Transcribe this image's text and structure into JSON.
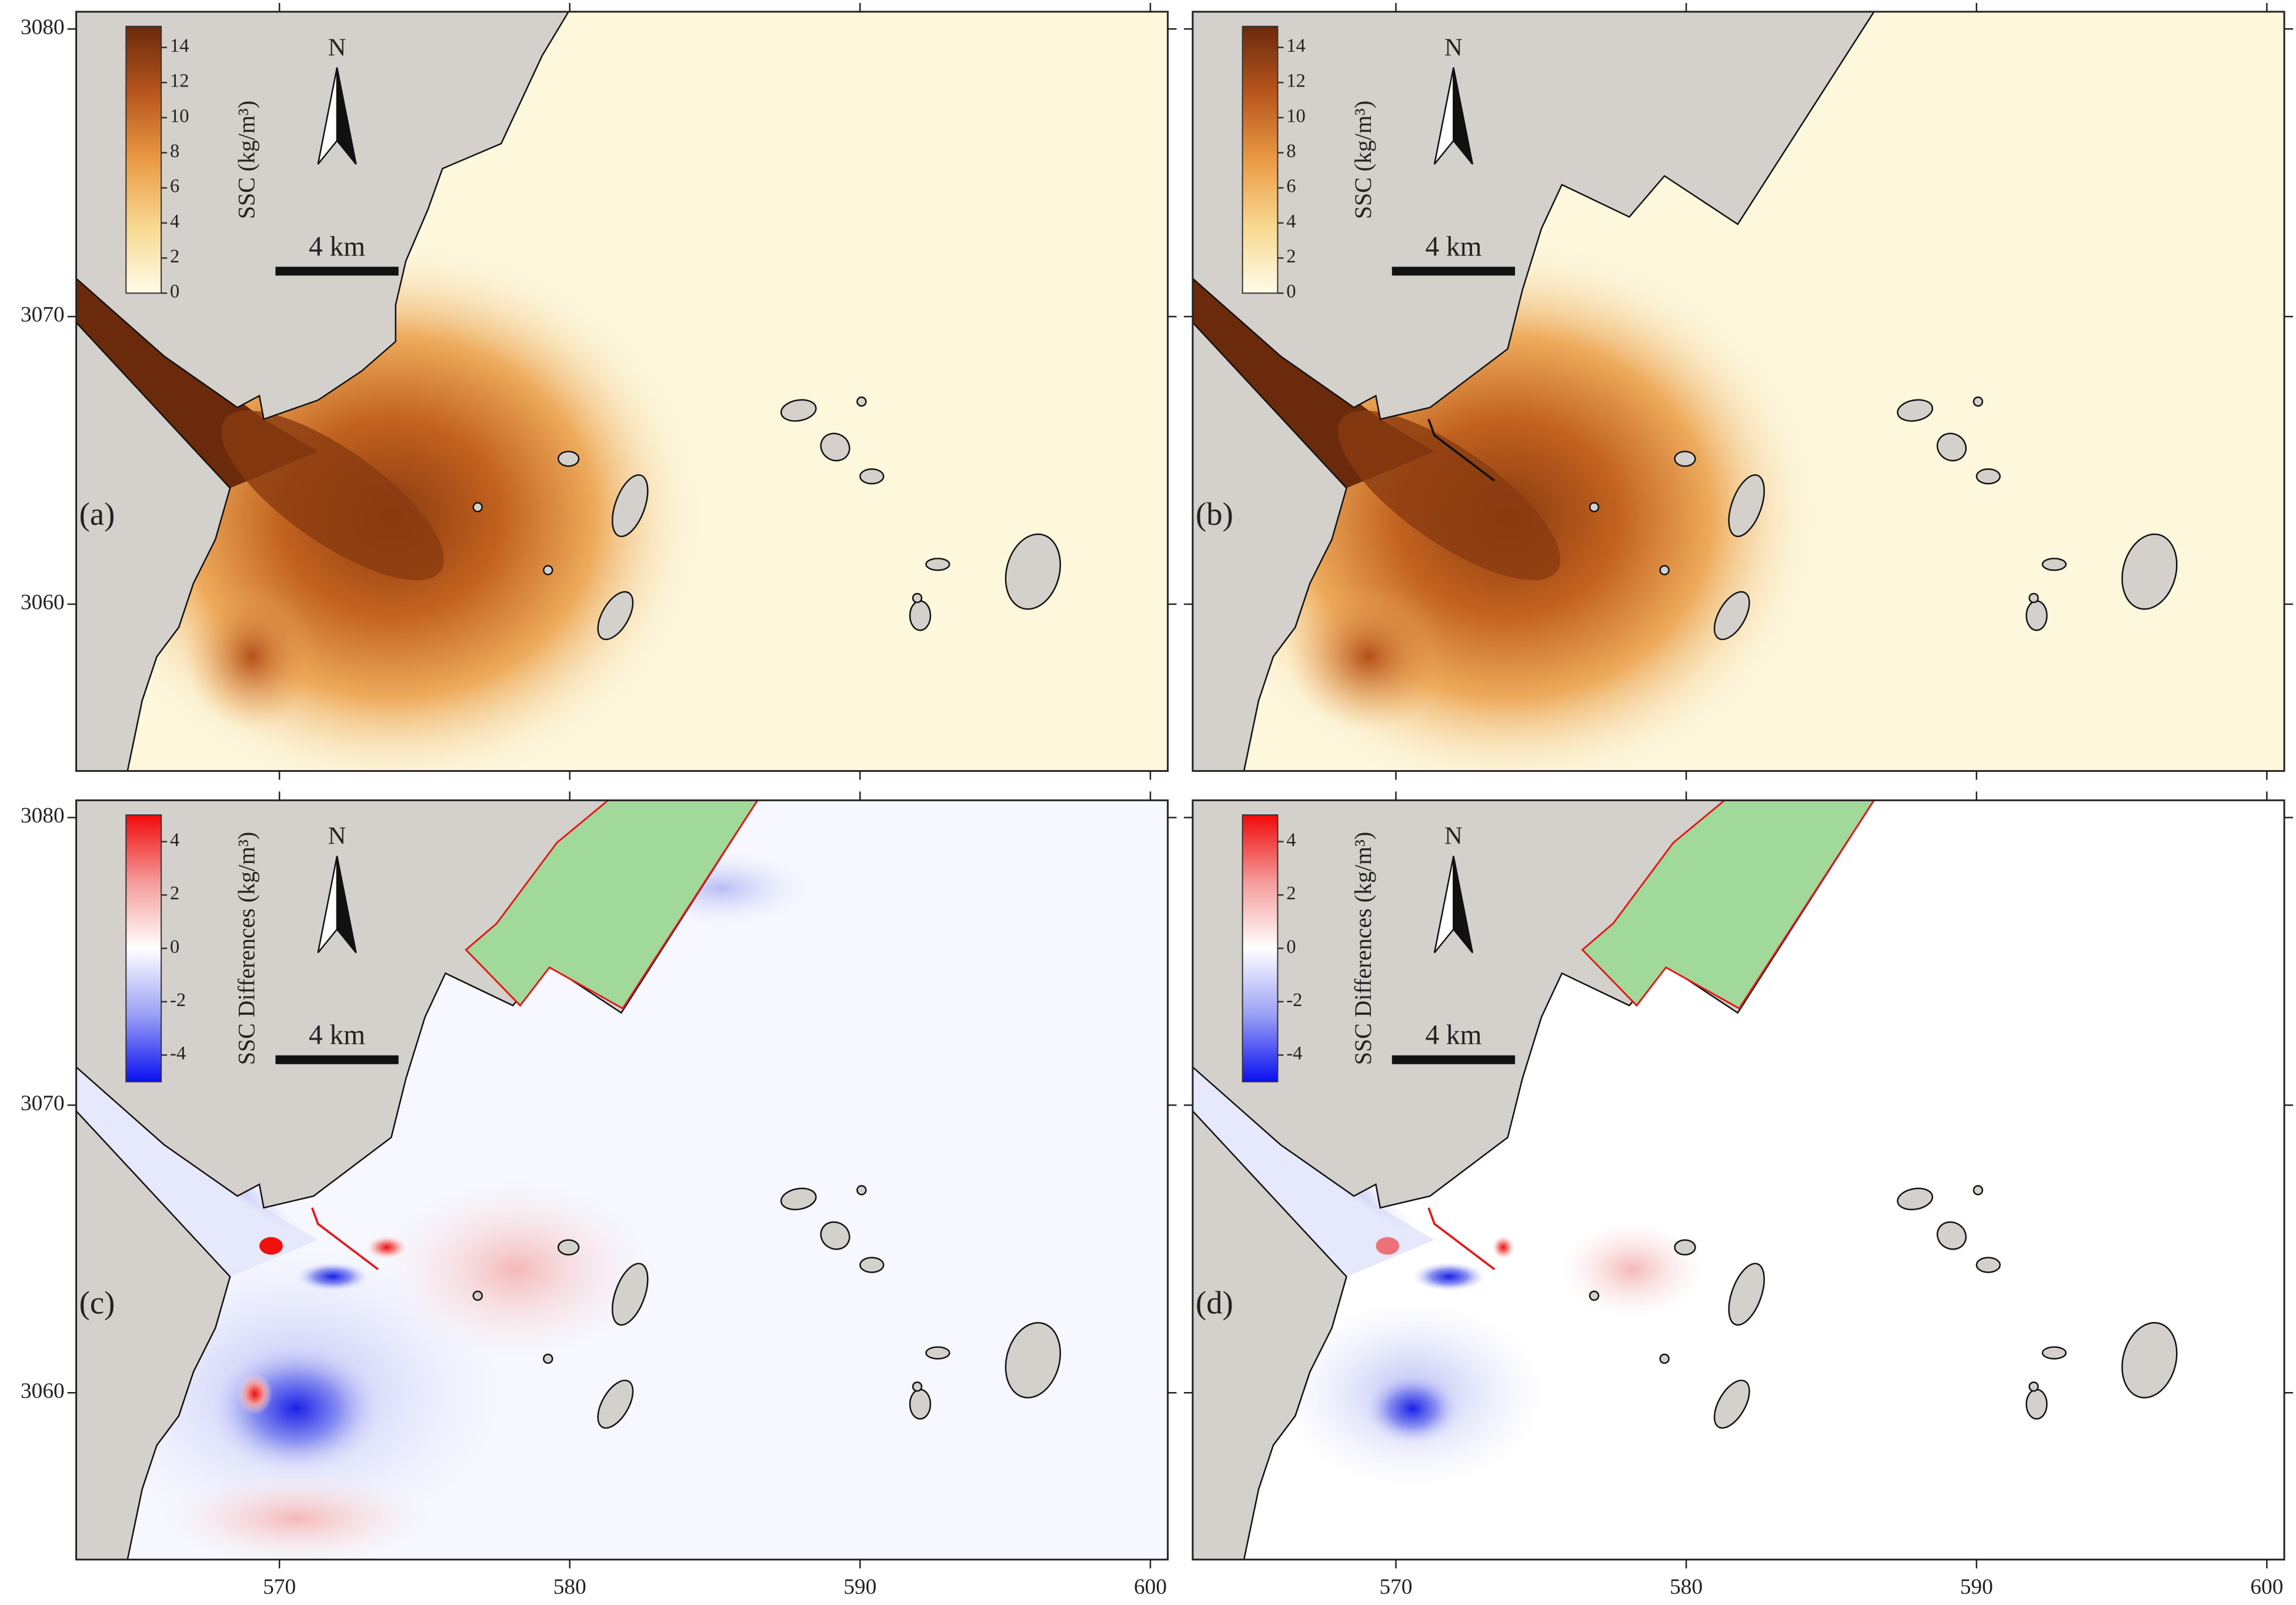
{
  "axes": {
    "xlim": [
      563,
      600.6
    ],
    "ylim": [
      3054.2,
      3080.6
    ],
    "xticks": [
      570,
      580,
      590,
      600
    ],
    "yticks": [
      3060,
      3070,
      3080
    ]
  },
  "panels": [
    {
      "label": "(a)",
      "north": "N",
      "scale_bar": "4 km",
      "colorbar": {
        "title": "SSC (kg/m³)",
        "lim": [
          0,
          15.2
        ],
        "ticks": [
          0,
          2,
          4,
          6,
          8,
          10,
          12,
          14
        ],
        "colors": [
          "#fffbe8",
          "#f8d88f",
          "#ea9a45",
          "#b8561c",
          "#6b2a0c"
        ]
      }
    },
    {
      "label": "(b)",
      "north": "N",
      "scale_bar": "4 km",
      "colorbar": {
        "title": "SSC (kg/m³)",
        "lim": [
          0,
          15.2
        ],
        "ticks": [
          0,
          2,
          4,
          6,
          8,
          10,
          12,
          14
        ],
        "colors": [
          "#fffbe8",
          "#f8d88f",
          "#ea9a45",
          "#b8561c",
          "#6b2a0c"
        ]
      }
    },
    {
      "label": "(c)",
      "north": "N",
      "scale_bar": "4 km",
      "colorbar": {
        "title": "SSC Differences (kg/m³)",
        "lim": [
          -5,
          5
        ],
        "ticks": [
          -4,
          -2,
          0,
          2,
          4
        ],
        "colors": [
          "#0a10f0",
          "#9aa0f5",
          "#ffffff",
          "#f59a9a",
          "#f00a0a"
        ]
      }
    },
    {
      "label": "(d)",
      "north": "N",
      "scale_bar": "4 km",
      "colorbar": {
        "title": "SSC Differences (kg/m³)",
        "lim": [
          -5,
          5
        ],
        "ticks": [
          -4,
          -2,
          0,
          2,
          4
        ],
        "colors": [
          "#0a10f0",
          "#9aa0f5",
          "#ffffff",
          "#f59a9a",
          "#f00a0a"
        ]
      }
    }
  ]
}
